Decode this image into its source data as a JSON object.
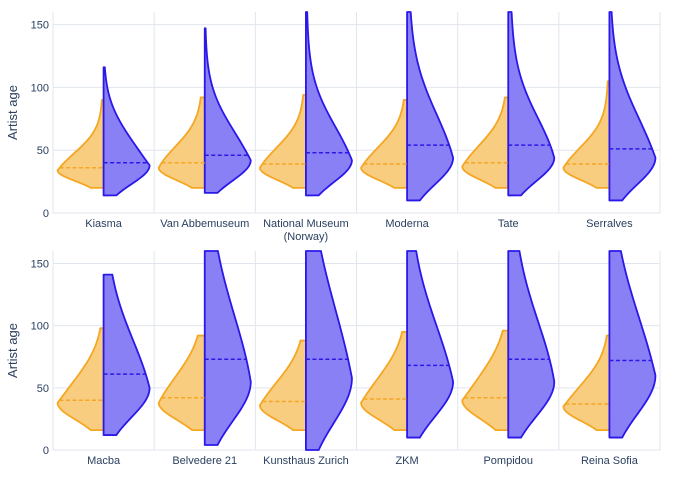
{
  "chart_data": {
    "type": "violin",
    "split": true,
    "ylabel": "Artist age",
    "ylim": [
      0,
      160
    ],
    "yticks": [
      0,
      50,
      100,
      150
    ],
    "grid": true,
    "colors": {
      "left": "#f5a623",
      "left_fill": "#f8cd80",
      "right": "#2a18e8",
      "right_fill": "#8a80f5"
    },
    "rows": [
      {
        "ylabel": "Artist age",
        "panels": [
          {
            "label": "Kiasma",
            "left": {
              "min": 20,
              "max": 90,
              "mode": 34,
              "median": 36
            },
            "right": {
              "min": 14,
              "max": 116,
              "mode": 38,
              "median": 40
            }
          },
          {
            "label": "Van Abbemuseum",
            "left": {
              "min": 20,
              "max": 92,
              "mode": 36,
              "median": 40
            },
            "right": {
              "min": 16,
              "max": 147,
              "mode": 42,
              "median": 46
            }
          },
          {
            "label": [
              "National Museum",
              "(Norway)"
            ],
            "left": {
              "min": 20,
              "max": 94,
              "mode": 36,
              "median": 39
            },
            "right": {
              "min": 14,
              "max": 160,
              "mode": 42,
              "median": 48
            }
          },
          {
            "label": "Moderna",
            "left": {
              "min": 20,
              "max": 90,
              "mode": 36,
              "median": 39
            },
            "right": {
              "min": 10,
              "max": 160,
              "mode": 44,
              "median": 54
            }
          },
          {
            "label": "Tate",
            "left": {
              "min": 20,
              "max": 92,
              "mode": 37,
              "median": 40
            },
            "right": {
              "min": 14,
              "max": 160,
              "mode": 44,
              "median": 54
            }
          },
          {
            "label": "Serralves",
            "left": {
              "min": 20,
              "max": 105,
              "mode": 36,
              "median": 39
            },
            "right": {
              "min": 10,
              "max": 160,
              "mode": 44,
              "median": 51
            }
          }
        ]
      },
      {
        "ylabel": "Artist age",
        "panels": [
          {
            "label": "Macba",
            "left": {
              "min": 16,
              "max": 98,
              "mode": 38,
              "median": 40
            },
            "right": {
              "min": 12,
              "max": 141,
              "mode": 50,
              "median": 61
            }
          },
          {
            "label": "Belvedere 21",
            "left": {
              "min": 16,
              "max": 92,
              "mode": 38,
              "median": 42
            },
            "right": {
              "min": 4,
              "max": 160,
              "mode": 55,
              "median": 73
            }
          },
          {
            "label": "Kunsthaus Zurich",
            "left": {
              "min": 16,
              "max": 88,
              "mode": 36,
              "median": 39
            },
            "right": {
              "min": 0,
              "max": 160,
              "mode": 58,
              "median": 73
            }
          },
          {
            "label": "ZKM",
            "left": {
              "min": 16,
              "max": 95,
              "mode": 38,
              "median": 41
            },
            "right": {
              "min": 10,
              "max": 160,
              "mode": 55,
              "median": 68
            }
          },
          {
            "label": "Pompidou",
            "left": {
              "min": 16,
              "max": 96,
              "mode": 40,
              "median": 42
            },
            "right": {
              "min": 10,
              "max": 160,
              "mode": 55,
              "median": 73
            }
          },
          {
            "label": "Reina Sofia",
            "left": {
              "min": 16,
              "max": 92,
              "mode": 35,
              "median": 37
            },
            "right": {
              "min": 10,
              "max": 160,
              "mode": 60,
              "median": 72
            }
          }
        ]
      }
    ]
  }
}
